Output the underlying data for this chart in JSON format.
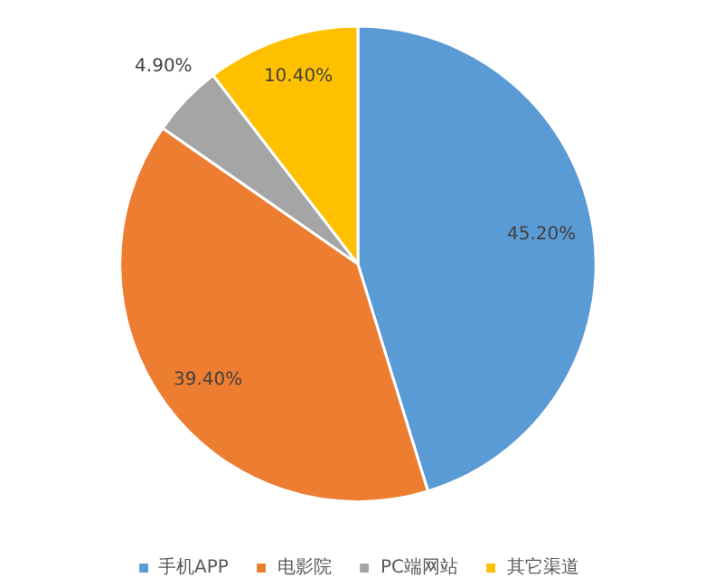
{
  "chart_data": {
    "type": "pie",
    "categories": [
      "手机APP",
      "电影院",
      "PC端网站",
      "其它渠道"
    ],
    "values": [
      45.2,
      39.4,
      4.9,
      10.4
    ],
    "colors": [
      "#5b9bd5",
      "#ed7d31",
      "#a5a5a5",
      "#ffc000"
    ],
    "value_labels": [
      "45.20%",
      "39.40%",
      "4.90%",
      "10.40%"
    ],
    "legend": "bottom"
  }
}
